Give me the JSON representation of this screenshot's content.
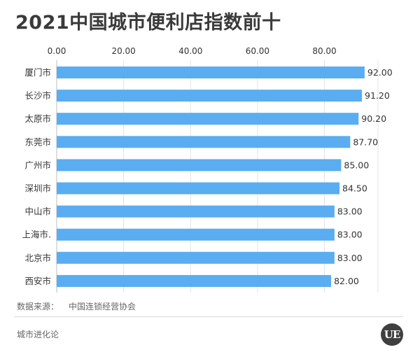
{
  "chart_data": {
    "type": "bar",
    "orientation": "horizontal",
    "title": "2021中国城市便利店指数前十",
    "categories": [
      "厦门市",
      "长沙市",
      "太原市",
      "东莞市",
      "广州市",
      "深圳市",
      "中山市",
      "上海市.",
      "北京市",
      "西安市"
    ],
    "values": [
      92.0,
      91.2,
      90.2,
      87.7,
      85.0,
      84.5,
      83.0,
      83.0,
      83.0,
      82.0
    ],
    "value_labels": [
      "92.00",
      "91.20",
      "90.20",
      "87.70",
      "85.00",
      "84.50",
      "83.00",
      "83.00",
      "83.00",
      "82.00"
    ],
    "xticks": [
      0,
      20,
      40,
      60,
      80
    ],
    "xtick_labels": [
      "0.00",
      "20.00",
      "40.00",
      "60.00",
      "80.00"
    ],
    "xlim": [
      0,
      96
    ],
    "axis_position": "top",
    "grid": true,
    "bar_color": "#5aadf0"
  },
  "source": {
    "label": "数据来源：",
    "value": "中国连锁经营协会"
  },
  "footer": {
    "brand": "城市进化论",
    "logo_text": "UE"
  }
}
